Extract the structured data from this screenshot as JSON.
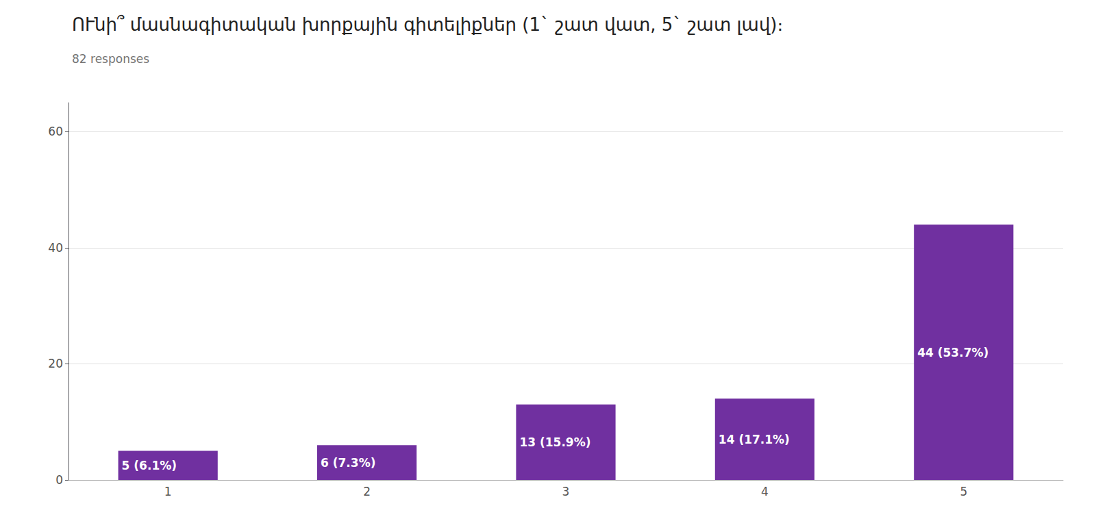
{
  "chart_data": {
    "type": "bar",
    "title": "ՈՒնի՞ մասնագիտական խորքային գիտելիքներ (1` շատ վատ, 5` շատ լավ)։",
    "subtitle": "82 responses",
    "categories": [
      1,
      2,
      3,
      4,
      5
    ],
    "values": [
      5,
      6,
      13,
      14,
      44
    ],
    "value_labels": [
      "5 (6.1%)",
      "6 (7.3%)",
      "13 (15.9%)",
      "14 (17.1%)",
      "44 (53.7%)"
    ],
    "data_labels": true,
    "color": "#7030A0",
    "ylim": [
      0,
      65
    ],
    "yticks": [
      0,
      20,
      40,
      60
    ],
    "grid": true
  }
}
